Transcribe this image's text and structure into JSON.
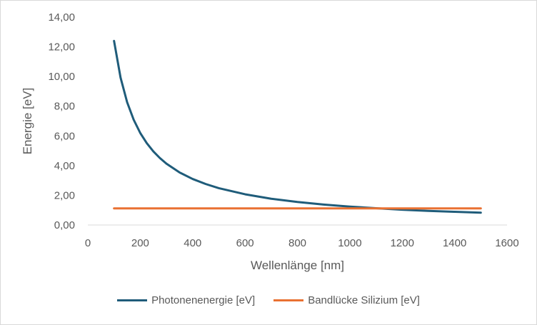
{
  "chart_data": {
    "type": "line",
    "xlabel": "Wellenlänge [nm]",
    "ylabel": "Energie [eV]",
    "xlim": [
      0,
      1600
    ],
    "ylim": [
      0,
      14
    ],
    "x_ticks": [
      "0",
      "200",
      "400",
      "600",
      "800",
      "1000",
      "1200",
      "1400",
      "1600"
    ],
    "y_ticks": [
      "0,00",
      "2,00",
      "4,00",
      "6,00",
      "8,00",
      "10,00",
      "12,00",
      "14,00"
    ],
    "grid": false,
    "legend_position": "bottom",
    "series": [
      {
        "name": "Photonenenergie [eV]",
        "color": "#1f5c7a",
        "x": [
          100,
          125,
          150,
          175,
          200,
          225,
          250,
          275,
          300,
          350,
          400,
          450,
          500,
          600,
          700,
          800,
          900,
          1000,
          1100,
          1200,
          1300,
          1400,
          1500
        ],
        "y": [
          12.4,
          9.92,
          8.27,
          7.09,
          6.2,
          5.51,
          4.96,
          4.51,
          4.13,
          3.54,
          3.1,
          2.76,
          2.48,
          2.07,
          1.77,
          1.55,
          1.38,
          1.24,
          1.13,
          1.03,
          0.95,
          0.89,
          0.83
        ]
      },
      {
        "name": "Bandlücke Silizium [eV]",
        "color": "#e97132",
        "x": [
          100,
          1500
        ],
        "y": [
          1.12,
          1.12
        ]
      }
    ]
  }
}
